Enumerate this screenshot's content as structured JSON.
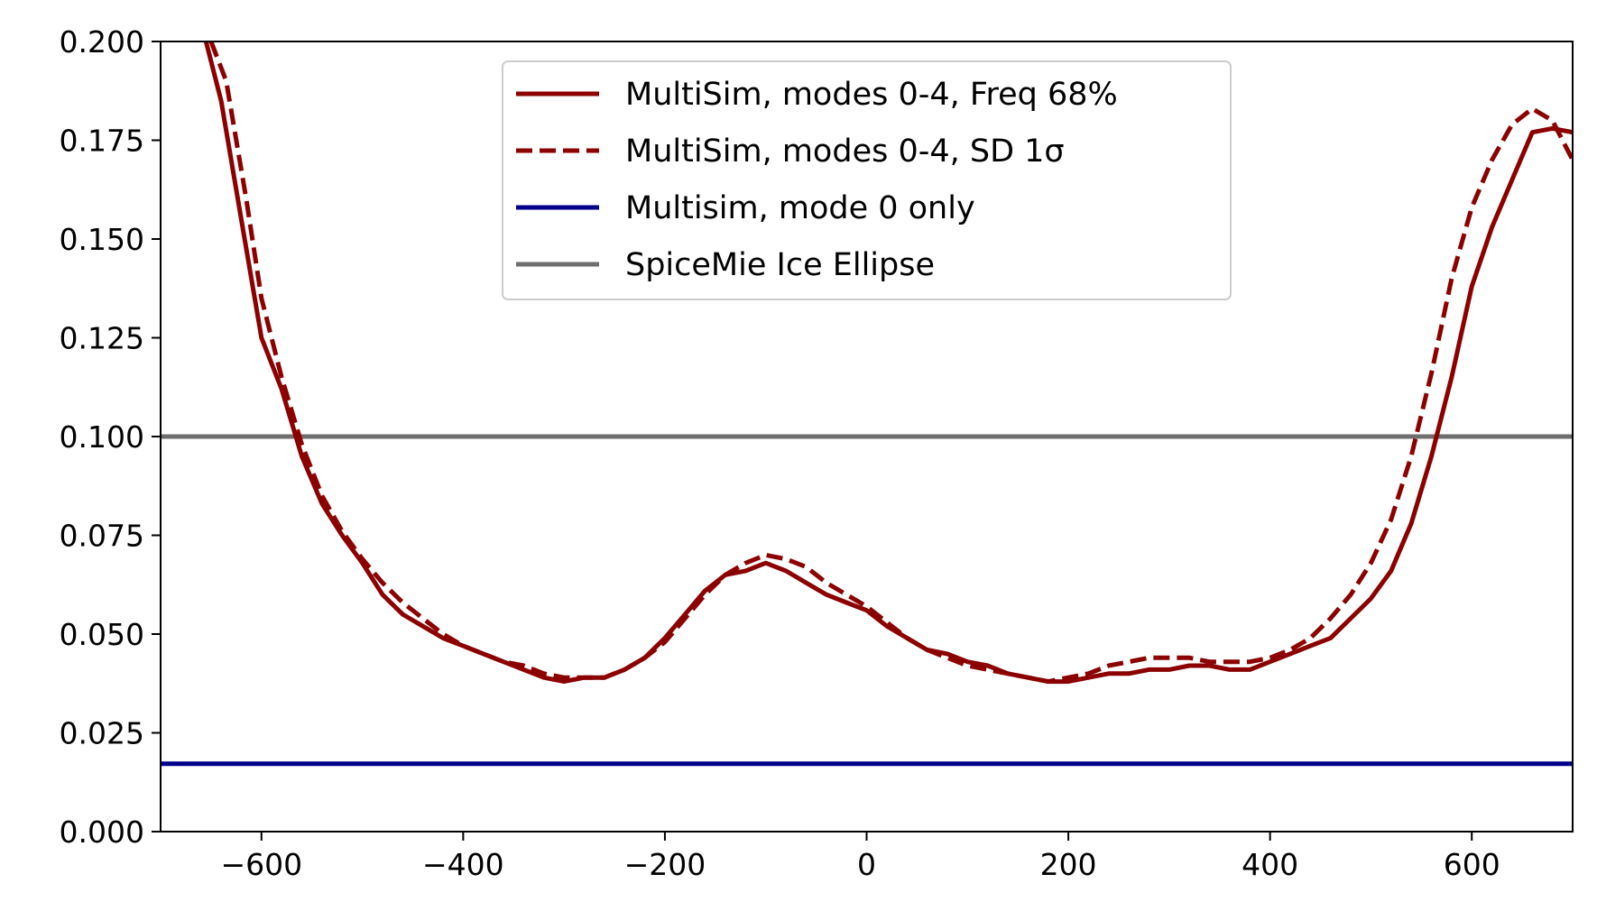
{
  "chart_data": {
    "type": "line",
    "title": "",
    "xlabel": "",
    "ylabel": "",
    "xlim": [
      -700,
      700
    ],
    "ylim": [
      0,
      0.2
    ],
    "grid": false,
    "legend_placement": "upper-center",
    "x_ticks": [
      -600,
      -400,
      -200,
      0,
      200,
      400,
      600
    ],
    "x_tick_labels": [
      "−600",
      "−400",
      "−200",
      "0",
      "200",
      "400",
      "600"
    ],
    "y_ticks": [
      0,
      0.025,
      0.05,
      0.075,
      0.1,
      0.125,
      0.15,
      0.175,
      0.2
    ],
    "y_tick_labels": [
      "0.000",
      "0.025",
      "0.050",
      "0.075",
      "0.100",
      "0.125",
      "0.150",
      "0.175",
      "0.200"
    ],
    "series": [
      {
        "name": "MultiSim, modes 0-4, Freq 68%",
        "color": "#8b0000",
        "style": "solid",
        "x": [
          -655,
          -640,
          -620,
          -600,
          -580,
          -560,
          -540,
          -520,
          -500,
          -480,
          -460,
          -440,
          -420,
          -400,
          -380,
          -360,
          -340,
          -320,
          -300,
          -280,
          -260,
          -240,
          -220,
          -200,
          -180,
          -160,
          -140,
          -120,
          -100,
          -80,
          -60,
          -40,
          -20,
          0,
          20,
          40,
          60,
          80,
          100,
          120,
          140,
          160,
          180,
          200,
          220,
          240,
          260,
          280,
          300,
          320,
          340,
          360,
          380,
          400,
          420,
          440,
          460,
          480,
          500,
          520,
          540,
          560,
          580,
          600,
          620,
          640,
          660,
          680,
          700
        ],
        "y": [
          0.2,
          0.185,
          0.155,
          0.125,
          0.112,
          0.095,
          0.083,
          0.075,
          0.068,
          0.06,
          0.055,
          0.052,
          0.049,
          0.047,
          0.045,
          0.043,
          0.041,
          0.039,
          0.038,
          0.039,
          0.039,
          0.041,
          0.044,
          0.049,
          0.055,
          0.061,
          0.065,
          0.066,
          0.068,
          0.066,
          0.063,
          0.06,
          0.058,
          0.056,
          0.052,
          0.049,
          0.046,
          0.045,
          0.043,
          0.042,
          0.04,
          0.039,
          0.038,
          0.038,
          0.039,
          0.04,
          0.04,
          0.041,
          0.041,
          0.042,
          0.042,
          0.041,
          0.041,
          0.043,
          0.045,
          0.047,
          0.049,
          0.054,
          0.059,
          0.066,
          0.078,
          0.095,
          0.115,
          0.138,
          0.153,
          0.165,
          0.177,
          0.178,
          0.177
        ]
      },
      {
        "name": "MultiSim, modes 0-4, SD 1σ",
        "color": "#8b0000",
        "style": "dashed",
        "x": [
          -650,
          -635,
          -615,
          -600,
          -580,
          -560,
          -540,
          -520,
          -500,
          -480,
          -460,
          -440,
          -420,
          -400,
          -380,
          -360,
          -340,
          -320,
          -300,
          -280,
          -260,
          -240,
          -220,
          -200,
          -180,
          -160,
          -140,
          -120,
          -100,
          -80,
          -60,
          -40,
          -20,
          0,
          20,
          40,
          60,
          80,
          100,
          120,
          140,
          160,
          180,
          200,
          220,
          240,
          260,
          280,
          300,
          320,
          340,
          360,
          380,
          400,
          420,
          440,
          460,
          480,
          500,
          520,
          540,
          560,
          580,
          600,
          620,
          640,
          660,
          680,
          700
        ],
        "y": [
          0.2,
          0.19,
          0.16,
          0.135,
          0.115,
          0.098,
          0.085,
          0.076,
          0.069,
          0.063,
          0.058,
          0.054,
          0.05,
          0.047,
          0.045,
          0.043,
          0.042,
          0.04,
          0.039,
          0.039,
          0.039,
          0.041,
          0.044,
          0.048,
          0.054,
          0.06,
          0.065,
          0.068,
          0.07,
          0.069,
          0.067,
          0.063,
          0.06,
          0.057,
          0.053,
          0.049,
          0.046,
          0.044,
          0.042,
          0.041,
          0.04,
          0.039,
          0.038,
          0.039,
          0.04,
          0.042,
          0.043,
          0.044,
          0.044,
          0.044,
          0.043,
          0.043,
          0.043,
          0.044,
          0.046,
          0.049,
          0.054,
          0.06,
          0.068,
          0.079,
          0.095,
          0.116,
          0.14,
          0.158,
          0.17,
          0.179,
          0.183,
          0.18,
          0.17
        ]
      },
      {
        "name": "Multisim, mode 0 only",
        "color": "#00008b",
        "style": "solid",
        "x": [
          -700,
          700
        ],
        "y": [
          0.0172,
          0.0172
        ]
      },
      {
        "name": "SpiceMie Ice Ellipse",
        "color": "#6e6e6e",
        "style": "solid",
        "x": [
          -700,
          700
        ],
        "y": [
          0.1,
          0.1
        ]
      }
    ]
  }
}
